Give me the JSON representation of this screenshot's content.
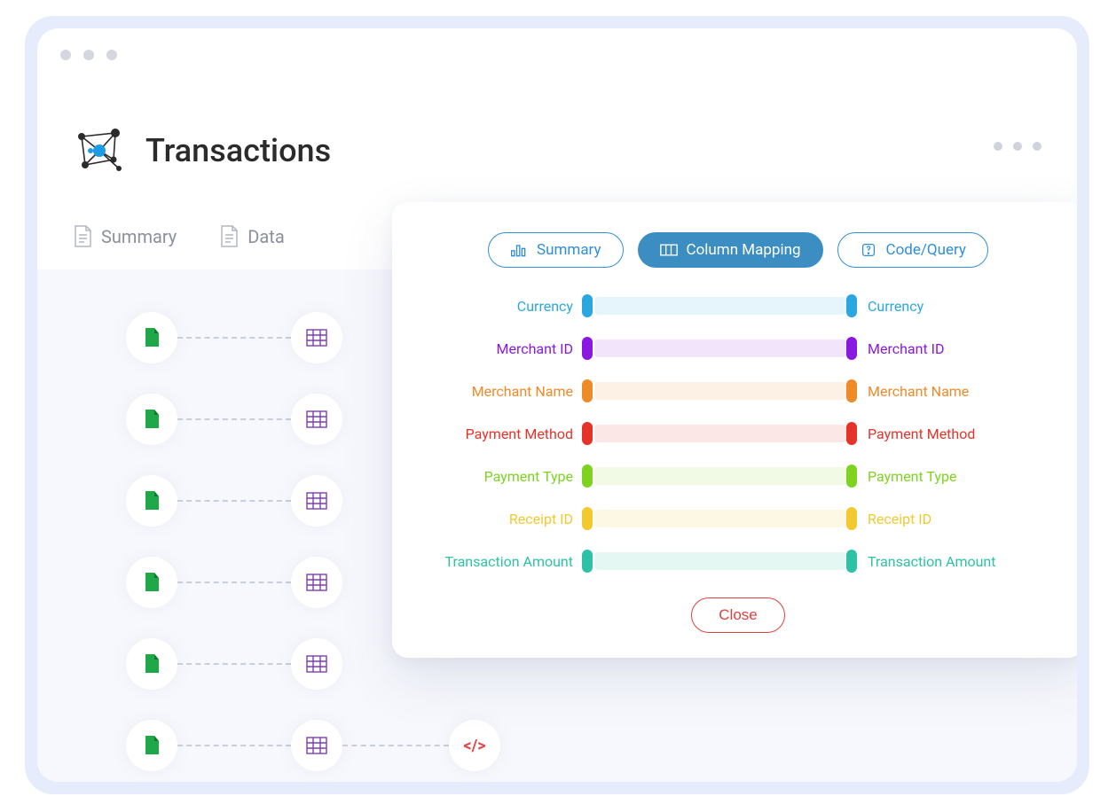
{
  "page": {
    "title": "Transactions"
  },
  "tabs": {
    "summary": "Summary",
    "data": "Data"
  },
  "modal": {
    "tabs": {
      "summary": "Summary",
      "column_mapping": "Column Mapping",
      "code_query": "Code/Query",
      "active": "column_mapping"
    },
    "close_label": "Close",
    "accent_color": "#2f8fd6",
    "close_color": "#e04040"
  },
  "mappings": [
    {
      "left": "Currency",
      "right": "Currency",
      "color": "#2aa7e1",
      "bar_bg": "#e6f5fb"
    },
    {
      "left": "Merchant ID",
      "right": "Merchant ID",
      "color": "#8a18e0",
      "bar_bg": "#f1e4fb"
    },
    {
      "left": "Merchant Name",
      "right": "Merchant Name",
      "color": "#ef8a28",
      "bar_bg": "#fdf1e5"
    },
    {
      "left": "Payment Method",
      "right": "Payment Method",
      "color": "#e6332a",
      "bar_bg": "#fbe7e6"
    },
    {
      "left": "Payment Type",
      "right": "Payment Type",
      "color": "#7ed321",
      "bar_bg": "#f0fae5"
    },
    {
      "left": "Receipt ID",
      "right": "Receipt ID",
      "color": "#f2c92e",
      "bar_bg": "#fdf8e4"
    },
    {
      "left": "Transaction Amount",
      "right": "Transaction Amount",
      "color": "#2dc2a6",
      "bar_bg": "#e5f7f3"
    }
  ],
  "background_nodes": {
    "row_count": 6,
    "file_icon_color": "#1fa84a",
    "table_icon_color": "#7b3fb3",
    "connector_color": "#c9cde0"
  }
}
